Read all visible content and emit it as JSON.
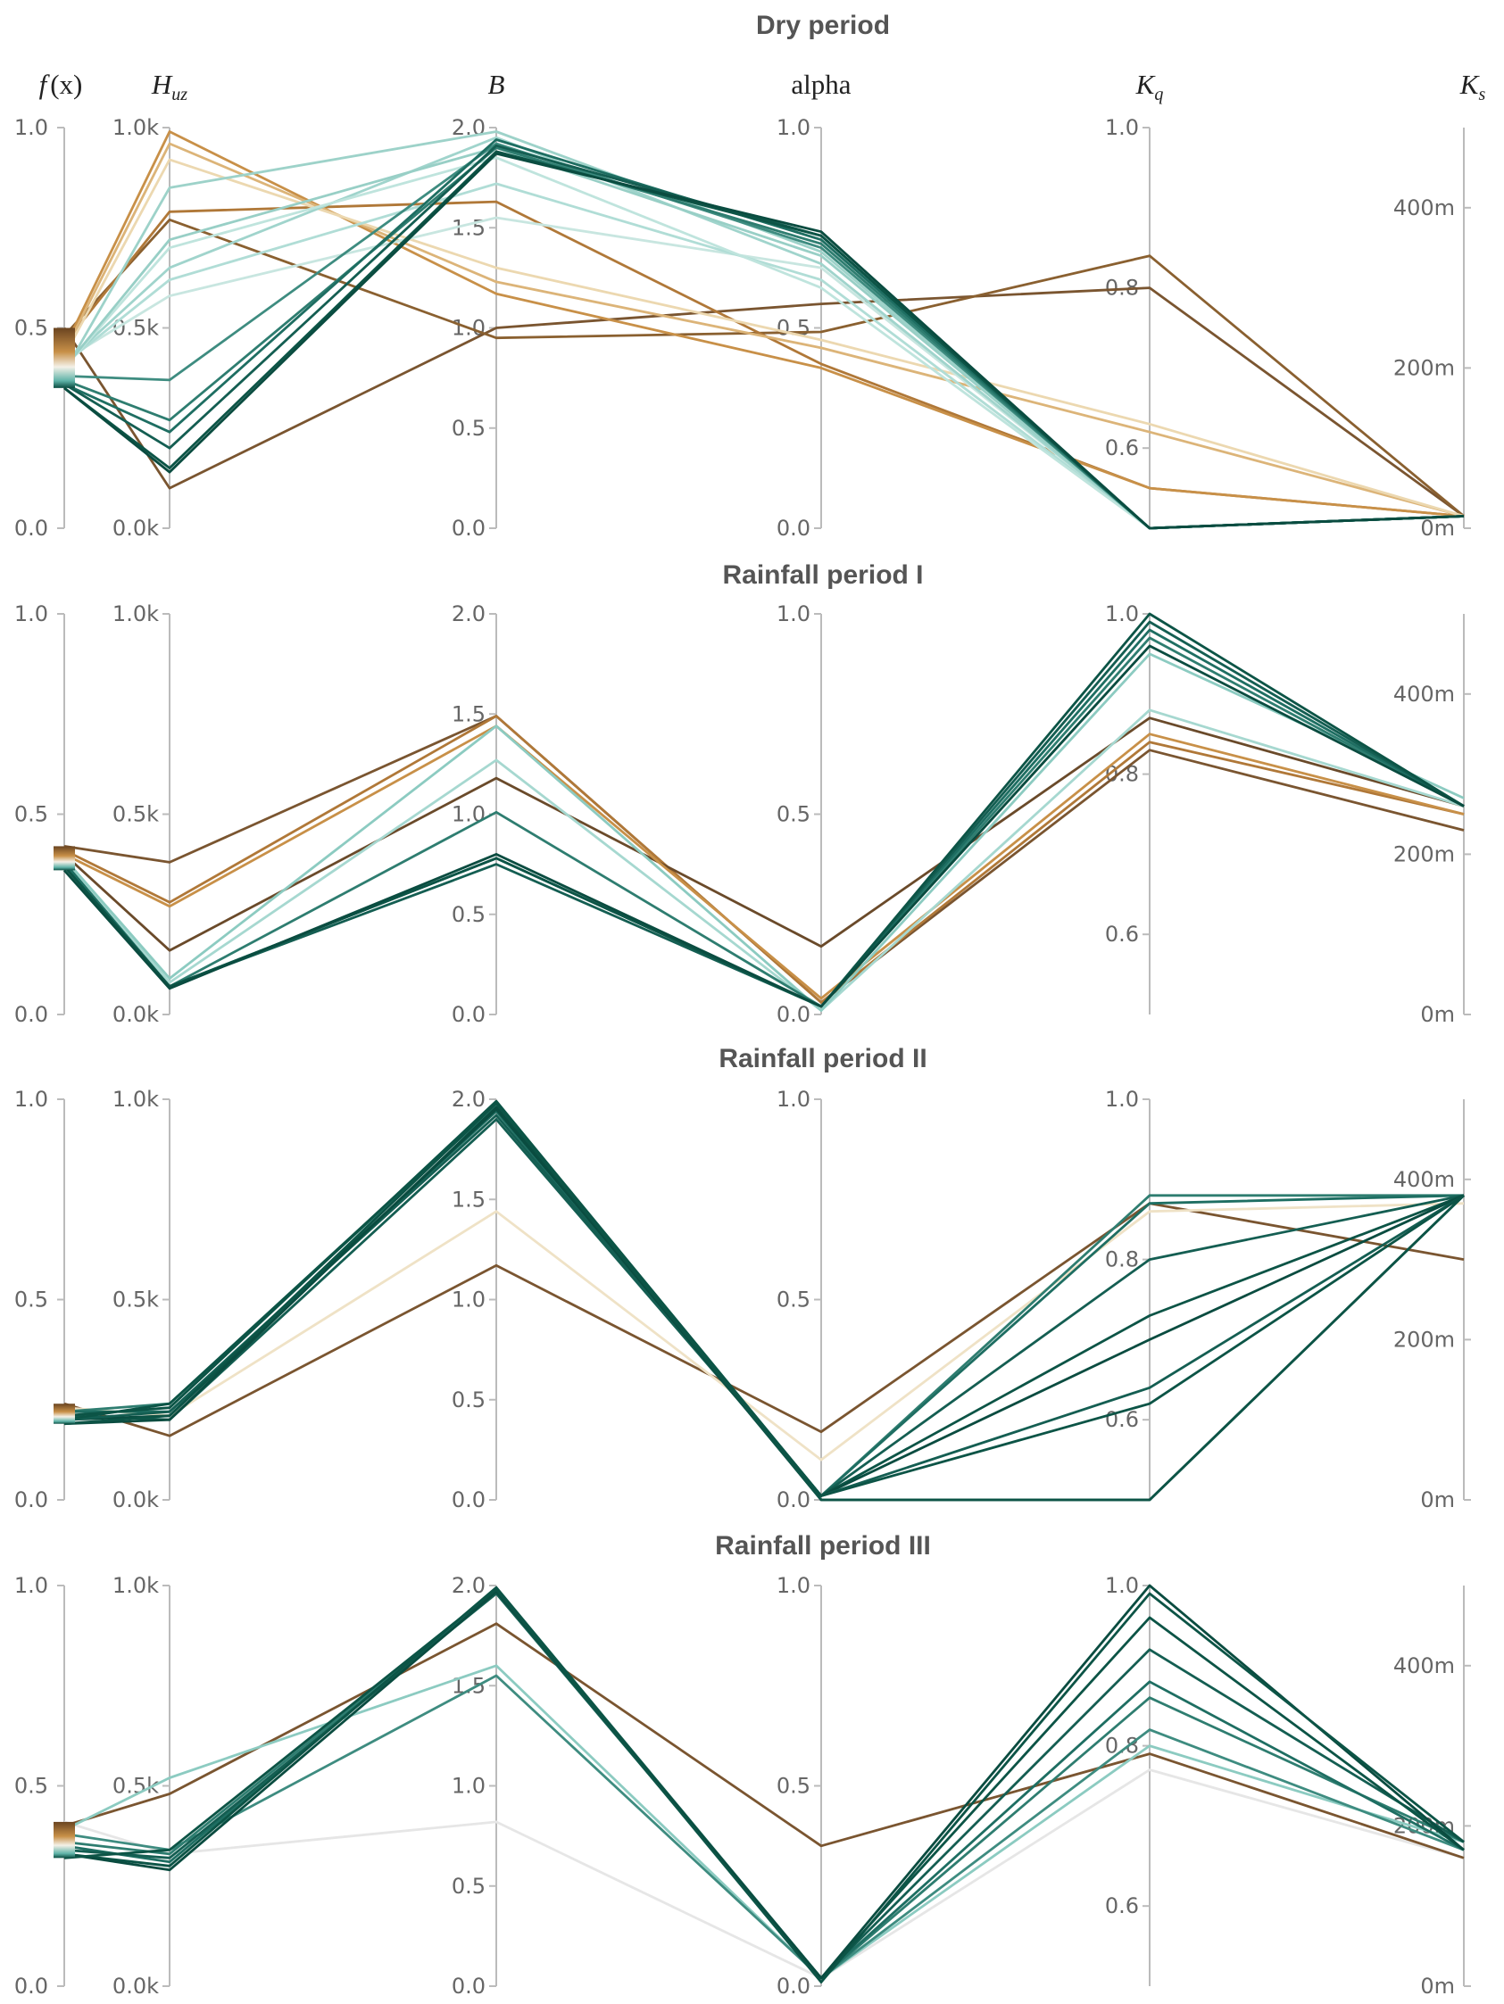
{
  "chart_data": [
    {
      "type": "parallel_coordinates",
      "title": "Dry period",
      "axes": [
        {
          "key": "fx",
          "name": "f",
          "arg": "(x)",
          "range": [
            0,
            1
          ],
          "ticks": [
            "0.0",
            "0.5",
            "1.0"
          ]
        },
        {
          "key": "Huz",
          "name": "H",
          "sub": "uz",
          "range": [
            0,
            1000
          ],
          "ticks": [
            "0.0k",
            "0.5k",
            "1.0k"
          ]
        },
        {
          "key": "B",
          "name": "B",
          "range": [
            0,
            2
          ],
          "ticks": [
            "0.0",
            "0.5",
            "1.0",
            "1.5",
            "2.0"
          ]
        },
        {
          "key": "alpha",
          "name": "alpha",
          "range": [
            0,
            1
          ],
          "ticks": [
            "0.0",
            "0.5",
            "1.0"
          ]
        },
        {
          "key": "Kq",
          "name": "K",
          "sub": "q",
          "range": [
            0.5,
            1
          ],
          "ticks": [
            "0.6",
            "0.8",
            "1.0"
          ]
        },
        {
          "key": "Ks",
          "name": "K",
          "sub": "s",
          "range": [
            0,
            0.5
          ],
          "ticks": [
            "0m",
            "200m",
            "400m"
          ]
        }
      ],
      "colorbar": {
        "range": [
          0.35,
          0.5
        ]
      },
      "lines": [
        {
          "color": "#7a5530",
          "values": [
            0.5,
            100,
            1.0,
            0.56,
            0.8,
            0.015
          ]
        },
        {
          "color": "#8a6030",
          "values": [
            0.48,
            770,
            0.95,
            0.49,
            0.84,
            0.015
          ]
        },
        {
          "color": "#b07838",
          "values": [
            0.46,
            790,
            1.63,
            0.41,
            0.55,
            0.015
          ]
        },
        {
          "color": "#c89048",
          "values": [
            0.45,
            990,
            1.17,
            0.4,
            0.55,
            0.015
          ]
        },
        {
          "color": "#dcb478",
          "values": [
            0.44,
            960,
            1.23,
            0.45,
            0.62,
            0.015
          ]
        },
        {
          "color": "#ecd8b0",
          "values": [
            0.43,
            920,
            1.3,
            0.47,
            0.63,
            0.015
          ]
        },
        {
          "color": "#c8e6e0",
          "values": [
            0.42,
            580,
            1.55,
            0.65,
            0.5,
            0.015
          ]
        },
        {
          "color": "#b0ddd6",
          "values": [
            0.41,
            620,
            1.72,
            0.62,
            0.5,
            0.015
          ]
        },
        {
          "color": "#a0d4cc",
          "values": [
            0.41,
            650,
            1.95,
            0.66,
            0.5,
            0.015
          ]
        },
        {
          "color": "#bfe4dd",
          "values": [
            0.4,
            700,
            1.85,
            0.6,
            0.5,
            0.015
          ]
        },
        {
          "color": "#98cfc6",
          "values": [
            0.4,
            720,
            1.9,
            0.68,
            0.5,
            0.015
          ]
        },
        {
          "color": "#9dd2c9",
          "values": [
            0.39,
            850,
            1.98,
            0.69,
            0.5,
            0.015
          ]
        },
        {
          "color": "#3e8c80",
          "values": [
            0.38,
            370,
            1.92,
            0.7,
            0.5,
            0.015
          ]
        },
        {
          "color": "#2e7d70",
          "values": [
            0.37,
            270,
            1.9,
            0.71,
            0.5,
            0.015
          ]
        },
        {
          "color": "#1e6e62",
          "values": [
            0.36,
            240,
            1.94,
            0.72,
            0.5,
            0.015
          ]
        },
        {
          "color": "#145e52",
          "values": [
            0.36,
            200,
            1.91,
            0.73,
            0.5,
            0.015
          ]
        },
        {
          "color": "#0c5446",
          "values": [
            0.35,
            150,
            1.88,
            0.73,
            0.5,
            0.015
          ]
        },
        {
          "color": "#0a4c40",
          "values": [
            0.35,
            140,
            1.87,
            0.74,
            0.5,
            0.015
          ]
        }
      ]
    },
    {
      "type": "parallel_coordinates",
      "title": "Rainfall period I",
      "axes": [
        {
          "key": "fx",
          "range": [
            0,
            1
          ],
          "ticks": [
            "0.0",
            "0.5",
            "1.0"
          ]
        },
        {
          "key": "Huz",
          "range": [
            0,
            1000
          ],
          "ticks": [
            "0.0k",
            "0.5k",
            "1.0k"
          ]
        },
        {
          "key": "B",
          "range": [
            0,
            2
          ],
          "ticks": [
            "0.0",
            "0.5",
            "1.0",
            "1.5",
            "2.0"
          ]
        },
        {
          "key": "alpha",
          "range": [
            0,
            1
          ],
          "ticks": [
            "0.0",
            "0.5",
            "1.0"
          ]
        },
        {
          "key": "Kq",
          "range": [
            0.5,
            1
          ],
          "ticks": [
            "0.6",
            "0.8",
            "1.0"
          ]
        },
        {
          "key": "Ks",
          "range": [
            0,
            0.5
          ],
          "ticks": [
            "0m",
            "200m",
            "400m"
          ]
        }
      ],
      "colorbar": {
        "range": [
          0.36,
          0.42
        ]
      },
      "lines": [
        {
          "color": "#7a5530",
          "values": [
            0.42,
            380,
            1.49,
            0.03,
            0.83,
            0.23
          ]
        },
        {
          "color": "#b07838",
          "values": [
            0.41,
            280,
            1.49,
            0.03,
            0.84,
            0.25
          ]
        },
        {
          "color": "#6a4a2a",
          "values": [
            0.4,
            160,
            1.18,
            0.17,
            0.87,
            0.26
          ]
        },
        {
          "color": "#c89048",
          "values": [
            0.4,
            270,
            1.44,
            0.04,
            0.85,
            0.25
          ]
        },
        {
          "color": "#a6d8d0",
          "values": [
            0.39,
            80,
            1.27,
            0.01,
            0.88,
            0.26
          ]
        },
        {
          "color": "#8ccbc1",
          "values": [
            0.39,
            90,
            1.44,
            0.01,
            0.95,
            0.27
          ]
        },
        {
          "color": "#2e7d70",
          "values": [
            0.38,
            70,
            1.01,
            0.02,
            0.97,
            0.26
          ]
        },
        {
          "color": "#1e6e62",
          "values": [
            0.38,
            70,
            0.78,
            0.02,
            0.98,
            0.26
          ]
        },
        {
          "color": "#145e52",
          "values": [
            0.37,
            70,
            0.75,
            0.02,
            0.99,
            0.26
          ]
        },
        {
          "color": "#0c5446",
          "values": [
            0.37,
            70,
            0.78,
            0.02,
            1.0,
            0.26
          ]
        },
        {
          "color": "#0a4c40",
          "values": [
            0.36,
            65,
            0.8,
            0.02,
            0.96,
            0.26
          ]
        }
      ]
    },
    {
      "type": "parallel_coordinates",
      "title": "Rainfall period II",
      "axes": [
        {
          "key": "fx",
          "range": [
            0,
            1
          ],
          "ticks": [
            "0.0",
            "0.5",
            "1.0"
          ]
        },
        {
          "key": "Huz",
          "range": [
            0,
            1000
          ],
          "ticks": [
            "0.0k",
            "0.5k",
            "1.0k"
          ]
        },
        {
          "key": "B",
          "range": [
            0,
            2
          ],
          "ticks": [
            "0.0",
            "0.5",
            "1.0",
            "1.5",
            "2.0"
          ]
        },
        {
          "key": "alpha",
          "range": [
            0,
            1
          ],
          "ticks": [
            "0.0",
            "0.5",
            "1.0"
          ]
        },
        {
          "key": "Kq",
          "range": [
            0.5,
            1
          ],
          "ticks": [
            "0.6",
            "0.8",
            "1.0"
          ]
        },
        {
          "key": "Ks",
          "range": [
            0,
            0.5
          ],
          "ticks": [
            "0m",
            "200m",
            "400m"
          ]
        }
      ],
      "colorbar": {
        "range": [
          0.19,
          0.24
        ]
      },
      "lines": [
        {
          "color": "#7a5530",
          "values": [
            0.24,
            160,
            1.17,
            0.17,
            0.87,
            0.3
          ]
        },
        {
          "color": "#efe2c6",
          "values": [
            0.23,
            210,
            1.44,
            0.1,
            0.86,
            0.37
          ]
        },
        {
          "color": "#2e7d70",
          "values": [
            0.22,
            240,
            1.97,
            0.01,
            0.88,
            0.38
          ]
        },
        {
          "color": "#1e6e62",
          "values": [
            0.22,
            220,
            1.94,
            0.01,
            0.87,
            0.38
          ]
        },
        {
          "color": "#145e52",
          "values": [
            0.21,
            200,
            1.9,
            0.01,
            0.8,
            0.38
          ]
        },
        {
          "color": "#0c5446",
          "values": [
            0.21,
            230,
            1.99,
            0.01,
            0.73,
            0.38
          ]
        },
        {
          "color": "#0a4c40",
          "values": [
            0.2,
            210,
            1.95,
            0.01,
            0.7,
            0.38
          ]
        },
        {
          "color": "#145e52",
          "values": [
            0.2,
            220,
            1.92,
            0.01,
            0.64,
            0.38
          ]
        },
        {
          "color": "#0c5446",
          "values": [
            0.2,
            240,
            1.98,
            0.01,
            0.62,
            0.38
          ]
        },
        {
          "color": "#0a4c40",
          "values": [
            0.19,
            200,
            1.96,
            0.0,
            0.5,
            0.38
          ]
        },
        {
          "color": "#0c5446",
          "values": [
            0.19,
            210,
            1.98,
            0.0,
            0.5,
            0.38
          ]
        }
      ]
    },
    {
      "type": "parallel_coordinates",
      "title": "Rainfall period III",
      "axes": [
        {
          "key": "fx",
          "range": [
            0,
            1
          ],
          "ticks": [
            "0.0",
            "0.5",
            "1.0"
          ]
        },
        {
          "key": "Huz",
          "range": [
            0,
            1000
          ],
          "ticks": [
            "0.0k",
            "0.5k",
            "1.0k"
          ]
        },
        {
          "key": "B",
          "range": [
            0,
            2
          ],
          "ticks": [
            "0.0",
            "0.5",
            "1.0",
            "1.5",
            "2.0"
          ]
        },
        {
          "key": "alpha",
          "range": [
            0,
            1
          ],
          "ticks": [
            "0.0",
            "0.5",
            "1.0"
          ]
        },
        {
          "key": "Kq",
          "range": [
            0.5,
            1
          ],
          "ticks": [
            "0.6",
            "0.8",
            "1.0"
          ]
        },
        {
          "key": "Ks",
          "range": [
            0,
            0.5
          ],
          "ticks": [
            "0m",
            "200m",
            "400m"
          ]
        }
      ],
      "colorbar": {
        "range": [
          0.32,
          0.41
        ]
      },
      "lines": [
        {
          "color": "#e6e6e6",
          "values": [
            0.41,
            330,
            0.82,
            0.02,
            0.77,
            0.16
          ]
        },
        {
          "color": "#7a5530",
          "values": [
            0.4,
            480,
            1.81,
            0.35,
            0.79,
            0.16
          ]
        },
        {
          "color": "#8ccbc1",
          "values": [
            0.39,
            520,
            1.6,
            0.02,
            0.8,
            0.18
          ]
        },
        {
          "color": "#3e8c80",
          "values": [
            0.38,
            340,
            1.55,
            0.02,
            0.82,
            0.17
          ]
        },
        {
          "color": "#2e7d70",
          "values": [
            0.36,
            330,
            1.97,
            0.02,
            0.86,
            0.18
          ]
        },
        {
          "color": "#1e6e62",
          "values": [
            0.35,
            310,
            1.98,
            0.02,
            0.88,
            0.17
          ]
        },
        {
          "color": "#145e52",
          "values": [
            0.34,
            320,
            1.96,
            0.02,
            0.92,
            0.18
          ]
        },
        {
          "color": "#0c5446",
          "values": [
            0.33,
            300,
            1.99,
            0.02,
            0.96,
            0.17
          ]
        },
        {
          "color": "#0a4c40",
          "values": [
            0.33,
            290,
            1.97,
            0.02,
            1.0,
            0.17
          ]
        },
        {
          "color": "#0c5446",
          "values": [
            0.32,
            340,
            1.98,
            0.01,
            0.99,
            0.18
          ]
        }
      ]
    }
  ]
}
